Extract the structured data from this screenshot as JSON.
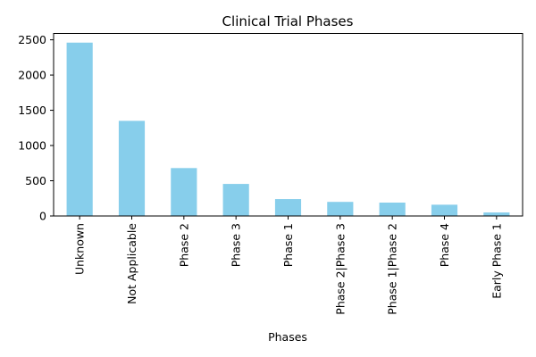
{
  "chart_data": {
    "type": "bar",
    "title": "Clinical Trial Phases",
    "xlabel": "Phases",
    "ylabel": "",
    "categories": [
      "Unknown",
      "Not Applicable",
      "Phase 2",
      "Phase 3",
      "Phase 1",
      "Phase 2|Phase 3",
      "Phase 1|Phase 2",
      "Phase 4",
      "Early Phase 1"
    ],
    "values": [
      2460,
      1350,
      680,
      455,
      240,
      200,
      190,
      160,
      50
    ],
    "ylim": [
      0,
      2590
    ],
    "yticks": [
      0,
      500,
      1000,
      1500,
      2000,
      2500
    ],
    "bar_color": "#87ceeb",
    "grid": false,
    "legend": false
  }
}
